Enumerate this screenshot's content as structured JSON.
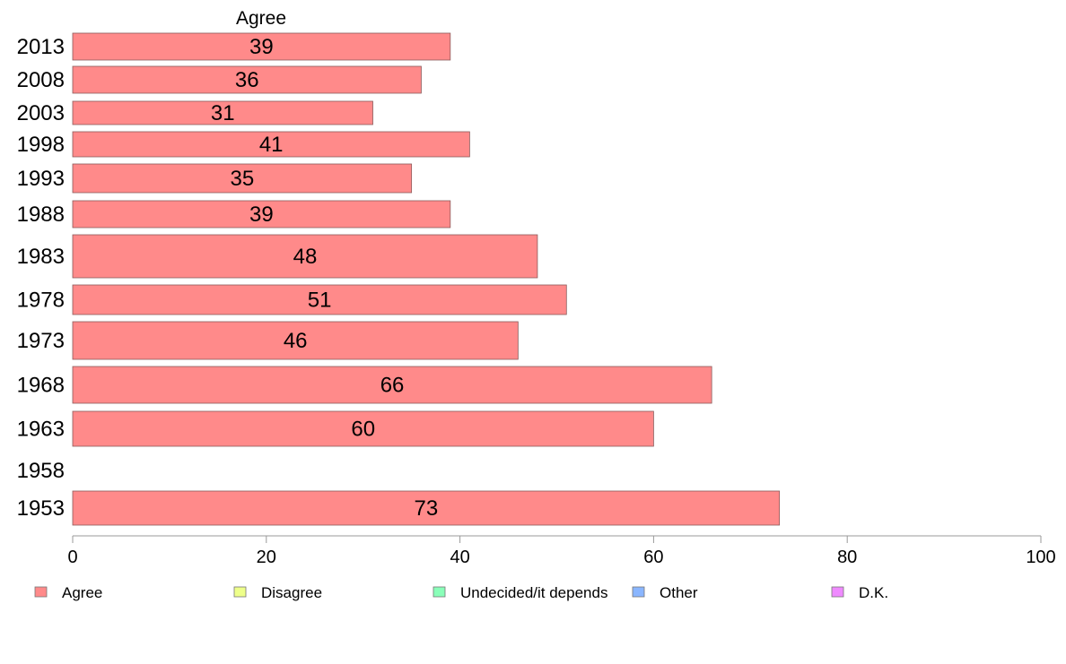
{
  "chart_data": {
    "type": "bar",
    "orientation": "horizontal",
    "title": "Agree",
    "categories": [
      "2013",
      "2008",
      "2003",
      "1998",
      "1993",
      "1988",
      "1983",
      "1978",
      "1973",
      "1968",
      "1963",
      "1958",
      "1953"
    ],
    "series": [
      {
        "name": "Agree",
        "color": "#ff8a8a",
        "values": [
          39,
          36,
          31,
          41,
          35,
          39,
          48,
          51,
          46,
          66,
          60,
          null,
          73
        ]
      }
    ],
    "xlim": [
      0,
      100
    ],
    "xticks": [
      "0",
      "20",
      "40",
      "60",
      "80",
      "100"
    ],
    "grid": false,
    "legend_position": "bottom",
    "legend": [
      {
        "label": "Agree",
        "color": "#ff8a8a"
      },
      {
        "label": "Disagree",
        "color": "#eeff8a"
      },
      {
        "label": "Undecided/it depends",
        "color": "#8affb9"
      },
      {
        "label": "Other",
        "color": "#8ab6ff"
      },
      {
        "label": "D.K.",
        "color": "#ef8aff"
      }
    ]
  }
}
